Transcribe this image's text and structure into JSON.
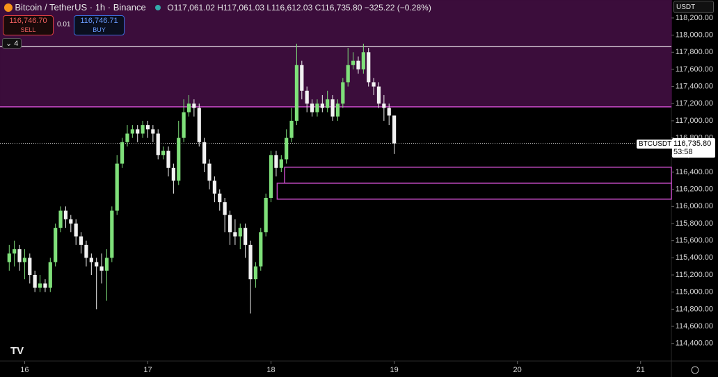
{
  "header": {
    "symbol": "Bitcoin / TetherUS · 1h · Binance",
    "ohlc": "O117,061.02 H117,061.03 L116,612.03 C116,735.80 −325.22 (−0.28%)",
    "sell_price": "116,746.70",
    "sell": "SELL",
    "spread": "0.01",
    "buy_price": "116,746.71",
    "buy": "BUY",
    "indicators": "4",
    "currency": "USDT",
    "logo": "TV"
  },
  "price_label": {
    "symbol": "BTCUSDT",
    "price": "116,735.80",
    "countdown": "53:58"
  },
  "chart_data": {
    "type": "candlestick",
    "up_color": "#7fe07a",
    "down_color": "#f2f2f2",
    "x": [
      15.875,
      15.9167,
      15.9583,
      16,
      16.0417,
      16.0833,
      16.125,
      16.1667,
      16.2083,
      16.25,
      16.2917,
      16.3333,
      16.375,
      16.4167,
      16.4583,
      16.5,
      16.5417,
      16.5833,
      16.625,
      16.6667,
      16.7083,
      16.75,
      16.7917,
      16.8333,
      16.875,
      16.9167,
      16.9583,
      17,
      17.0417,
      17.0833,
      17.125,
      17.1667,
      17.2083,
      17.25,
      17.2917,
      17.3333,
      17.375,
      17.4167,
      17.4583,
      17.5,
      17.5417,
      17.5833,
      17.625,
      17.6667,
      17.7083,
      17.75,
      17.7917,
      17.8333,
      17.875,
      17.9167,
      17.9583,
      18,
      18.0417,
      18.0833,
      18.125,
      18.1667,
      18.2083,
      18.25,
      18.2917,
      18.3333,
      18.375,
      18.4167,
      18.4583,
      18.5,
      18.5417,
      18.5833,
      18.625,
      18.6667,
      18.7083,
      18.75,
      18.7917,
      18.8333,
      18.875,
      18.9167,
      18.9583,
      19
    ],
    "open": [
      115350,
      115450,
      115500,
      115350,
      115400,
      115200,
      115050,
      115100,
      115050,
      115350,
      115750,
      115950,
      115850,
      115800,
      115650,
      115550,
      115400,
      115350,
      115300,
      115250,
      115400,
      115950,
      116500,
      116750,
      116850,
      116900,
      116850,
      116950,
      116900,
      116850,
      116600,
      116650,
      116450,
      116300,
      116800,
      117100,
      117200,
      117150,
      116750,
      116500,
      116300,
      116150,
      116050,
      115900,
      115700,
      115650,
      115750,
      115550,
      115150,
      115300,
      115700,
      116100,
      116600,
      116450,
      116550,
      116800,
      117000,
      117650,
      117350,
      117200,
      117100,
      117200,
      117150,
      117250,
      117050,
      117200,
      117450,
      117650,
      117700,
      117600,
      117800,
      117450,
      117400,
      117200,
      117150,
      117061.02
    ],
    "high": [
      115550,
      115600,
      115550,
      115500,
      115450,
      115250,
      115200,
      115150,
      115400,
      115800,
      116000,
      116000,
      115900,
      115850,
      115700,
      115600,
      115450,
      115400,
      115450,
      115500,
      116000,
      116600,
      116800,
      116950,
      116950,
      116950,
      117000,
      117000,
      116950,
      116900,
      116700,
      116700,
      116500,
      117000,
      117250,
      117300,
      117250,
      117200,
      116800,
      116550,
      116350,
      116200,
      116100,
      115950,
      115850,
      115800,
      115800,
      115600,
      115350,
      115750,
      116150,
      116650,
      116650,
      116600,
      116900,
      117150,
      117900,
      117700,
      117400,
      117250,
      117250,
      117300,
      117350,
      117300,
      117250,
      117500,
      117850,
      117800,
      117750,
      117900,
      117850,
      117500,
      117450,
      117300,
      117200,
      117061.03
    ],
    "low": [
      115250,
      115300,
      115250,
      115150,
      115100,
      115000,
      115000,
      115000,
      115000,
      115300,
      115700,
      115750,
      115700,
      115550,
      115450,
      115300,
      115200,
      114800,
      115100,
      114900,
      115350,
      115900,
      116450,
      116700,
      116800,
      116750,
      116800,
      116800,
      116750,
      116550,
      116550,
      116350,
      116150,
      116250,
      116750,
      117050,
      117050,
      116700,
      116400,
      116200,
      116050,
      115950,
      115700,
      115550,
      115550,
      115500,
      115400,
      114750,
      115050,
      115250,
      115650,
      116050,
      116350,
      116400,
      116500,
      116750,
      116950,
      117250,
      117100,
      117050,
      117050,
      117100,
      117100,
      117000,
      117000,
      117150,
      117400,
      117600,
      117550,
      117550,
      117400,
      117300,
      117150,
      117000,
      116950,
      116612.03
    ],
    "close": [
      115450,
      115500,
      115350,
      115400,
      115200,
      115050,
      115100,
      115050,
      115350,
      115750,
      115950,
      115850,
      115800,
      115650,
      115550,
      115400,
      115350,
      115300,
      115250,
      115400,
      115950,
      116500,
      116750,
      116850,
      116900,
      116850,
      116950,
      116900,
      116850,
      116600,
      116650,
      116450,
      116300,
      116800,
      117100,
      117200,
      117150,
      116750,
      116500,
      116300,
      116150,
      116050,
      115900,
      115700,
      115650,
      115750,
      115550,
      115150,
      115300,
      115700,
      116100,
      116600,
      116450,
      116550,
      116800,
      117000,
      117650,
      117350,
      117200,
      117100,
      117200,
      117150,
      117250,
      117050,
      117200,
      117450,
      117650,
      117700,
      117600,
      117800,
      117450,
      117400,
      117200,
      117150,
      117061.02,
      116735.8
    ],
    "xlim": [
      15.8,
      21.25
    ],
    "xticks": [
      16,
      17,
      18,
      19,
      20,
      21
    ],
    "ylim": [
      114195,
      118410
    ],
    "yticks": [
      {
        "value": 114400,
        "label": "114,400.00"
      },
      {
        "value": 114600,
        "label": "114,600.00"
      },
      {
        "value": 114800,
        "label": "114,800.00"
      },
      {
        "value": 115000,
        "label": "115,000.00"
      },
      {
        "value": 115200,
        "label": "115,200.00"
      },
      {
        "value": 115400,
        "label": "115,400.00"
      },
      {
        "value": 115600,
        "label": "115,600.00"
      },
      {
        "value": 115800,
        "label": "115,800.00"
      },
      {
        "value": 116000,
        "label": "116,000.00"
      },
      {
        "value": 116200,
        "label": "116,200.00"
      },
      {
        "value": 116400,
        "label": "116,400.00"
      },
      {
        "value": 116600,
        "label": "116,600.00"
      },
      {
        "value": 116800,
        "label": "116,800.00"
      },
      {
        "value": 117000,
        "label": "117,000.00"
      },
      {
        "value": 117200,
        "label": "117,200.00"
      },
      {
        "value": 117400,
        "label": "117,400.00"
      },
      {
        "value": 117600,
        "label": "117,600.00"
      },
      {
        "value": 117800,
        "label": "117,800.00"
      },
      {
        "value": 118000,
        "label": "118,000.00"
      },
      {
        "value": 118200,
        "label": "118,200.00"
      }
    ],
    "zones": [
      {
        "x0": 15.8,
        "high": 118410,
        "low": 117163,
        "fill": "#3b0d3b",
        "stroke": "#3b0d3b"
      },
      {
        "x0": 18.11,
        "high": 116458,
        "low": 116271,
        "fill": "#000000",
        "stroke": "#c24ac2"
      },
      {
        "x0": 18.05,
        "high": 116271,
        "low": 116085,
        "fill": "#000000",
        "stroke": "#c24ac2"
      }
    ],
    "levels": [
      {
        "value": 117868,
        "color": "#cfc3cf"
      },
      {
        "value": 117163,
        "color": "#c94ac9"
      }
    ]
  }
}
